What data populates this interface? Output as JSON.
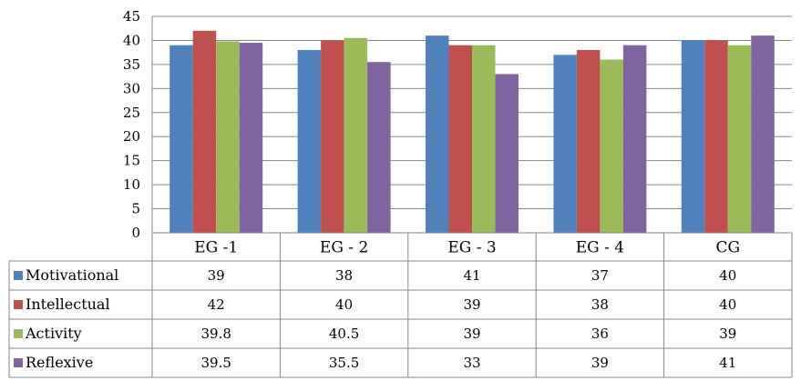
{
  "chart_data": {
    "type": "bar",
    "categories": [
      "EG -1",
      "EG - 2",
      "EG - 3",
      "EG - 4",
      "CG"
    ],
    "series": [
      {
        "name": "Motivational",
        "color": "#4F81BD",
        "values": [
          39,
          38,
          41,
          37,
          40
        ],
        "labels": [
          "39",
          "38",
          "41",
          "37",
          "40"
        ]
      },
      {
        "name": "Intellectual",
        "color": "#C0504D",
        "values": [
          42,
          40,
          39,
          38,
          40
        ],
        "labels": [
          "42",
          "40",
          "39",
          "38",
          "40"
        ]
      },
      {
        "name": "Activity",
        "color": "#9BBB59",
        "values": [
          39.8,
          40.5,
          39,
          36,
          39
        ],
        "labels": [
          "39.8",
          "40.5",
          "39",
          "36",
          "39"
        ]
      },
      {
        "name": "Reflexive",
        "color": "#8064A2",
        "values": [
          39.5,
          35.5,
          33,
          39,
          41
        ],
        "labels": [
          "39.5",
          "35.5",
          "33",
          "39",
          "41"
        ]
      }
    ],
    "ylim": [
      0,
      45
    ],
    "yticks": [
      "0",
      "5",
      "10",
      "15",
      "20",
      "25",
      "30",
      "35",
      "40",
      "45"
    ],
    "grid": true,
    "legend": "data-table-left",
    "title": "",
    "xlabel": "",
    "ylabel": ""
  }
}
